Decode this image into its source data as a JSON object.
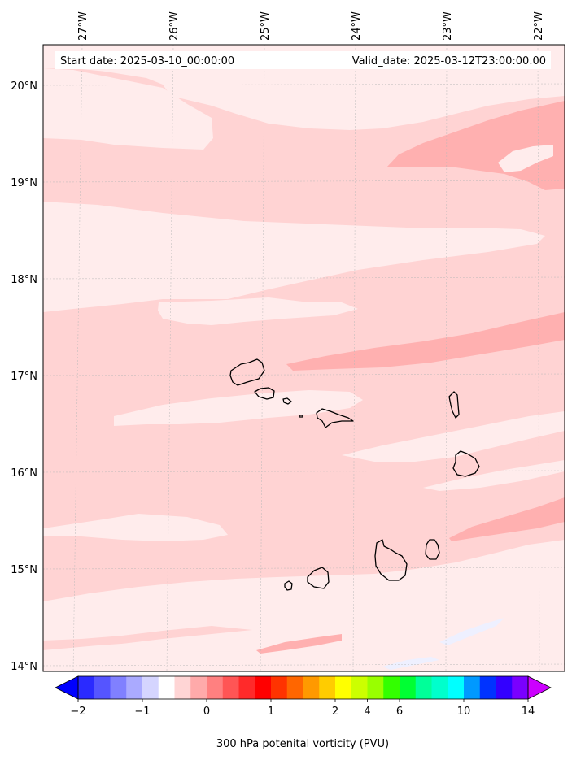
{
  "map": {
    "start_date_text": "Start date: 2025-03-10_00:00:00",
    "valid_date_text": "Valid_date: 2025-03-12T23:00:00.00",
    "lon_labels": [
      "27°W",
      "26°W",
      "25°W",
      "24°W",
      "23°W",
      "22°W"
    ],
    "lat_labels": [
      "20°N",
      "19°N",
      "18°N",
      "17°N",
      "16°N",
      "15°N",
      "14°N"
    ],
    "lon_range_deg": [
      -27.4,
      -21.8
    ],
    "lat_range_deg": [
      13.95,
      20.4
    ],
    "field_colors": {
      "lightest": "#ffecec",
      "light": "#ffd3d3",
      "medium": "#ffb0b0",
      "blue_tint": "#eef0ff"
    },
    "coastline_color": "#000000"
  },
  "colorbar": {
    "label": "300 hPa potenital vorticity (PVU)",
    "tick_labels": [
      "−2",
      "−1",
      "0",
      "1",
      "2",
      "4",
      "6",
      "10",
      "14"
    ],
    "tick_values": [
      -2,
      -1,
      0,
      1,
      2,
      4,
      6,
      10,
      14
    ],
    "extend": "both",
    "colors": [
      "#0000ff",
      "#2a2aff",
      "#5555ff",
      "#8080ff",
      "#aaaaff",
      "#d5d5ff",
      "#ffffff",
      "#ffd5d5",
      "#ffaaaa",
      "#ff8080",
      "#ff5555",
      "#ff2a2a",
      "#ff0000",
      "#ff3300",
      "#ff6600",
      "#ff9900",
      "#ffcc00",
      "#ffff00",
      "#ccff00",
      "#99ff00",
      "#33ff00",
      "#00ff33",
      "#00ff99",
      "#00ffcc",
      "#00ffff",
      "#0099ff",
      "#0033ff",
      "#3300ff",
      "#7a00ff",
      "#cc00ff"
    ]
  }
}
